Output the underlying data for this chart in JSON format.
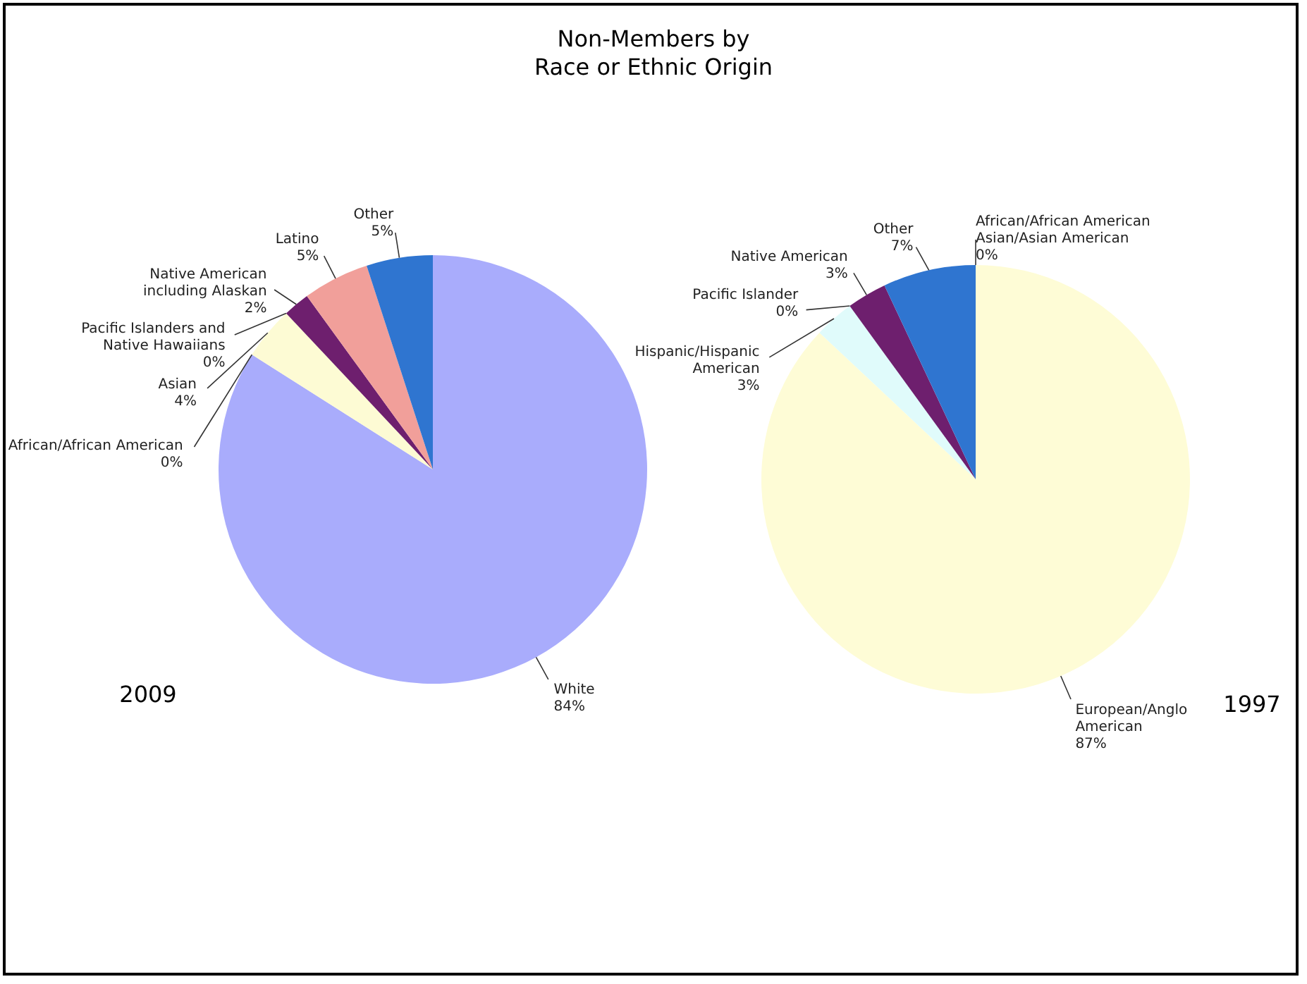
{
  "chart_data": [
    {
      "type": "pie",
      "title": "Non-Members by\nRace or Ethnic Origin",
      "categories": [
        "White",
        "African/African American",
        "Asian",
        "Pacific Islanders and\nNative Hawaiians",
        "Native American\nincluding Alaskan",
        "Latino",
        "Other"
      ],
      "values": [
        84,
        0,
        4,
        0,
        2,
        5,
        5
      ],
      "value_labels": [
        "84%",
        "0%",
        "4%",
        "0%",
        "2%",
        "5%",
        "5%"
      ],
      "colors": [
        "#a9acfc",
        "#8a8a8a",
        "#fdfbd4",
        "#7fbf7f",
        "#6e1f6e",
        "#f19f9a",
        "#2f75d0"
      ],
      "annotations": [
        "2009"
      ]
    },
    {
      "type": "pie",
      "categories": [
        "European/Anglo\nAmerican",
        "Hispanic/Hispanic\nAmerican",
        "Pacific Islander",
        "Native American",
        "Other",
        "African/African American\nAsian/Asian American"
      ],
      "values": [
        87,
        3,
        0,
        3,
        7,
        0
      ],
      "value_labels": [
        "87%",
        "3%",
        "0%",
        "3%",
        "7%",
        "0%"
      ],
      "colors": [
        "#fefcd6",
        "#e0fbfb",
        "#7fbf7f",
        "#6e1f6e",
        "#2f75d0",
        "#8a8a8a"
      ],
      "annotations": [
        "1997"
      ]
    }
  ]
}
